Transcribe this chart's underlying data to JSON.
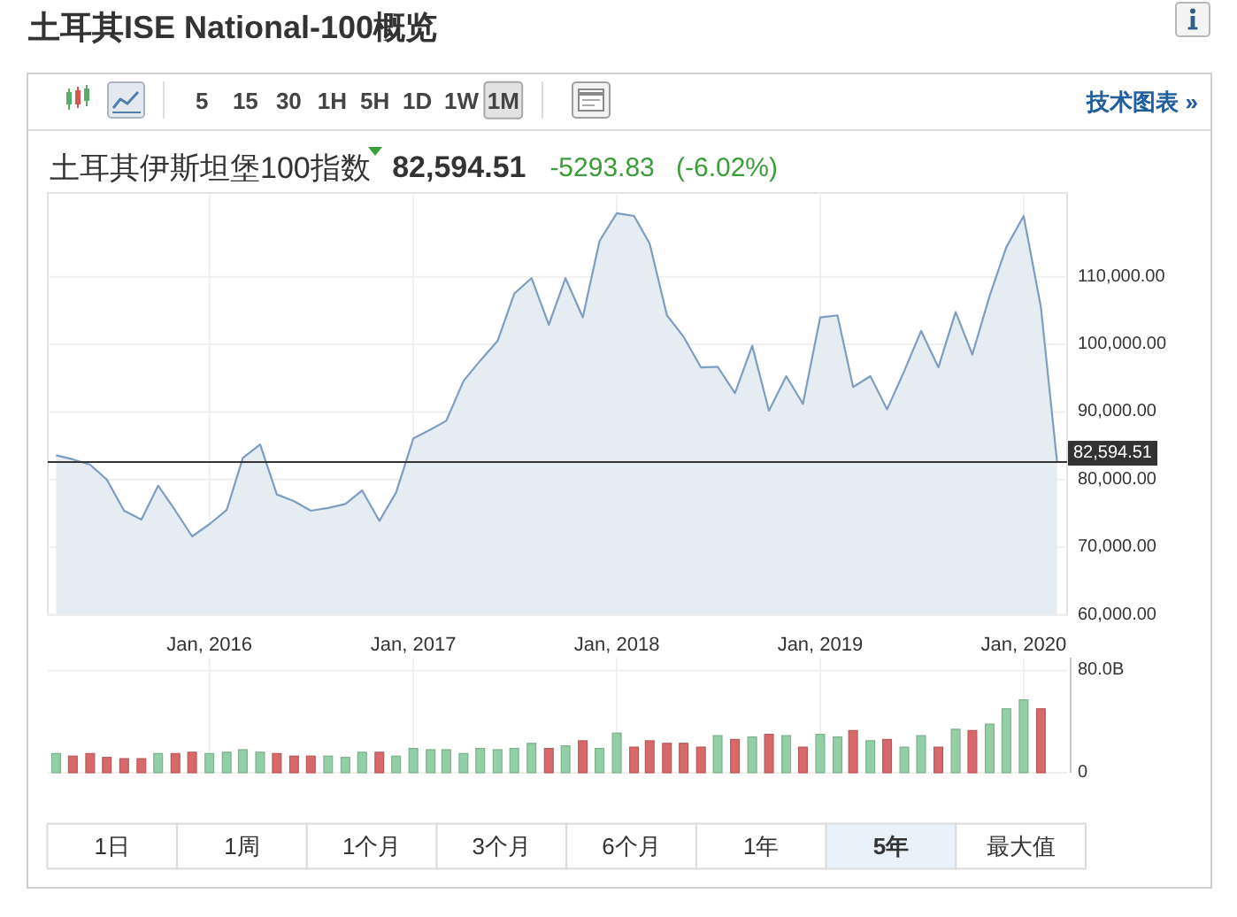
{
  "chart_data": [
    {
      "type": "area",
      "title": "土耳其ISE National-100概览",
      "subtitle": "土耳其伊斯坦堡100指数",
      "annotations": [
        "82,594.51",
        "-5293.83",
        "(-6.02%)",
        "5",
        "15",
        "30",
        "1H",
        "5H",
        "1D",
        "1W",
        "1M",
        "技术图表 »",
        "1日",
        "1周",
        "1个月",
        "3个月",
        "6个月",
        "1年",
        "5年",
        "最大值"
      ],
      "x": [
        "2015-04",
        "2015-05",
        "2015-06",
        "2015-07",
        "2015-08",
        "2015-09",
        "2015-10",
        "2015-11",
        "2015-12",
        "2016-01",
        "2016-02",
        "2016-03",
        "2016-04",
        "2016-05",
        "2016-06",
        "2016-07",
        "2016-08",
        "2016-09",
        "2016-10",
        "2016-11",
        "2016-12",
        "2017-01",
        "2017-02",
        "2017-03",
        "2017-04",
        "2017-05",
        "2017-06",
        "2017-07",
        "2017-08",
        "2017-09",
        "2017-10",
        "2017-11",
        "2017-12",
        "2018-01",
        "2018-02",
        "2018-03",
        "2018-04",
        "2018-05",
        "2018-06",
        "2018-07",
        "2018-08",
        "2018-09",
        "2018-10",
        "2018-11",
        "2018-12",
        "2019-01",
        "2019-02",
        "2019-03",
        "2019-04",
        "2019-05",
        "2019-06",
        "2019-07",
        "2019-08",
        "2019-09",
        "2019-10",
        "2019-11",
        "2019-12",
        "2020-01",
        "2020-02",
        "2020-03"
      ],
      "series": [
        {
          "color": "#7d9ec0",
          "values": [
            83600,
            83000,
            82200,
            80000,
            75400,
            74100,
            79100,
            75400,
            71600,
            73400,
            75500,
            83200,
            85200,
            77800,
            76800,
            75400,
            75800,
            76400,
            78400,
            73900,
            78100,
            86100,
            87400,
            88700,
            94600,
            97600,
            100500,
            107500,
            109800,
            102900,
            109800,
            104000,
            115300,
            119400,
            119000,
            114900,
            104300,
            101100,
            96600,
            96700,
            92800,
            99800,
            90200,
            95300,
            91200,
            104000,
            104300,
            93700,
            95300,
            90400,
            96100,
            102000,
            96600,
            104800,
            98500,
            107200,
            114400,
            119000,
            105500,
            82600
          ]
        }
      ],
      "xlim": [
        "2015-03-17",
        "2020-03-19"
      ],
      "ylim": [
        60000,
        122400
      ],
      "xticks": [
        {
          "value": "2016-01",
          "label": "Jan, 2016"
        },
        {
          "value": "2017-01",
          "label": "Jan, 2017"
        },
        {
          "value": "2018-01",
          "label": "Jan, 2018"
        },
        {
          "value": "2019-01",
          "label": "Jan, 2019"
        },
        {
          "value": "2020-01",
          "label": "Jan, 2020"
        }
      ],
      "yticks": [
        {
          "value": 60000,
          "label": "60,000.00"
        },
        {
          "value": 70000,
          "label": "70,000.00"
        },
        {
          "value": 80000,
          "label": "80,000.00"
        },
        {
          "value": 90000,
          "label": "90,000.00"
        },
        {
          "value": 100000,
          "label": "100,000.00"
        },
        {
          "value": 110000,
          "label": "110,000.00"
        }
      ],
      "grid": true,
      "ref_lines": [
        {
          "axis": "y",
          "value": 82594.51,
          "label": "82,594.51",
          "color": "#333333"
        }
      ]
    },
    {
      "type": "bar",
      "x": [
        "2015-04",
        "2015-05",
        "2015-06",
        "2015-07",
        "2015-08",
        "2015-09",
        "2015-10",
        "2015-11",
        "2015-12",
        "2016-01",
        "2016-02",
        "2016-03",
        "2016-04",
        "2016-05",
        "2016-06",
        "2016-07",
        "2016-08",
        "2016-09",
        "2016-10",
        "2016-11",
        "2016-12",
        "2017-01",
        "2017-02",
        "2017-03",
        "2017-04",
        "2017-05",
        "2017-06",
        "2017-07",
        "2017-08",
        "2017-09",
        "2017-10",
        "2017-11",
        "2017-12",
        "2018-01",
        "2018-02",
        "2018-03",
        "2018-04",
        "2018-05",
        "2018-06",
        "2018-07",
        "2018-08",
        "2018-09",
        "2018-10",
        "2018-11",
        "2018-12",
        "2019-01",
        "2019-02",
        "2019-03",
        "2019-04",
        "2019-05",
        "2019-06",
        "2019-07",
        "2019-08",
        "2019-09",
        "2019-10",
        "2019-11",
        "2019-12",
        "2020-01",
        "2020-02"
      ],
      "values": [
        15,
        13,
        15,
        12,
        11,
        11,
        15,
        15,
        16,
        15,
        16,
        18,
        16,
        15,
        13,
        13,
        13,
        12,
        16,
        16,
        13,
        19,
        18,
        18,
        15,
        19,
        18,
        19,
        23,
        19,
        21,
        25,
        19,
        31,
        20,
        25,
        23,
        23,
        20,
        29,
        26,
        28,
        30,
        29,
        20,
        30,
        28,
        33,
        25,
        26,
        20,
        29,
        20,
        34,
        33,
        38,
        50,
        57,
        50
      ],
      "colors": [
        "#93cfa6",
        "#d9686a",
        "#d9686a",
        "#d9686a",
        "#d9686a",
        "#d9686a",
        "#93cfa6",
        "#d9686a",
        "#d9686a",
        "#93cfa6",
        "#93cfa6",
        "#93cfa6",
        "#93cfa6",
        "#d9686a",
        "#d9686a",
        "#d9686a",
        "#93cfa6",
        "#93cfa6",
        "#93cfa6",
        "#d9686a",
        "#93cfa6",
        "#93cfa6",
        "#93cfa6",
        "#93cfa6",
        "#93cfa6",
        "#93cfa6",
        "#93cfa6",
        "#93cfa6",
        "#93cfa6",
        "#d9686a",
        "#93cfa6",
        "#d9686a",
        "#93cfa6",
        "#93cfa6",
        "#d9686a",
        "#d9686a",
        "#d9686a",
        "#d9686a",
        "#d9686a",
        "#93cfa6",
        "#d9686a",
        "#93cfa6",
        "#d9686a",
        "#93cfa6",
        "#d9686a",
        "#93cfa6",
        "#93cfa6",
        "#d9686a",
        "#93cfa6",
        "#d9686a",
        "#93cfa6",
        "#93cfa6",
        "#d9686a",
        "#93cfa6",
        "#d9686a",
        "#93cfa6",
        "#93cfa6",
        "#93cfa6",
        "#d9686a"
      ],
      "xlim": [
        "2015-03-17",
        "2020-03-19"
      ],
      "ylim": [
        0,
        90
      ],
      "xticks": [
        {
          "value": "2016-01",
          "label": null
        },
        {
          "value": "2017-01",
          "label": null
        },
        {
          "value": "2018-01",
          "label": null
        },
        {
          "value": "2019-01",
          "label": null
        },
        {
          "value": "2020-01",
          "label": null
        }
      ],
      "yticks": [
        0,
        {
          "value": 80,
          "label": "80.0B"
        }
      ],
      "grid": true,
      "tick_labels": "y"
    }
  ]
}
